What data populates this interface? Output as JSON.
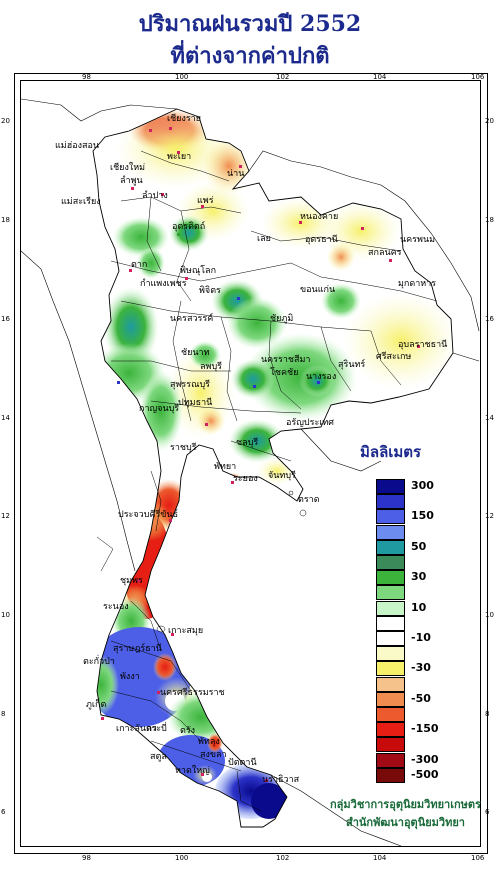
{
  "title_line1": "ปริมาณฝนรวมปี  2552",
  "title_line2": "ที่ต่างจากค่าปกติ",
  "lon_ticks": [
    "98",
    "100",
    "102",
    "104",
    "106"
  ],
  "lat_ticks": [
    "20",
    "18",
    "16",
    "14",
    "12",
    "10",
    "8",
    "6"
  ],
  "legend": {
    "title": "มิลลิเมตร",
    "levels": [
      {
        "label": "300",
        "color": "#0a0a8c"
      },
      {
        "label": "",
        "color": "#2c33c8"
      },
      {
        "label": "150",
        "color": "#4d5fe6"
      },
      {
        "label": "",
        "color": "#6c8cf0"
      },
      {
        "label": "50",
        "color": "#1e9aa0"
      },
      {
        "label": "",
        "color": "#3a8a5a"
      },
      {
        "label": "30",
        "color": "#3cb43c"
      },
      {
        "label": "",
        "color": "#7ed87e"
      },
      {
        "label": "10",
        "color": "#c8f5c8"
      },
      {
        "label": "",
        "color": "#ffffff"
      },
      {
        "label": "-10",
        "color": "#ffffff"
      },
      {
        "label": "",
        "color": "#fafac8"
      },
      {
        "label": "-30",
        "color": "#f7f06a"
      },
      {
        "label": "",
        "color": "#f5c28c"
      },
      {
        "label": "-50",
        "color": "#f08c50"
      },
      {
        "label": "",
        "color": "#ec5a2e"
      },
      {
        "label": "-150",
        "color": "#e61e14"
      },
      {
        "label": "",
        "color": "#c80a0a"
      },
      {
        "label": "-300",
        "color": "#a00a14"
      },
      {
        "label": "-500",
        "color": "#780a0a"
      }
    ]
  },
  "places": [
    {
      "name": "เชียงราย"
    },
    {
      "name": "แม่ฮ่องสอน"
    },
    {
      "name": "เชียงใหม่"
    },
    {
      "name": "ลำพูน"
    },
    {
      "name": "พะเยา"
    },
    {
      "name": "น่าน"
    },
    {
      "name": "ลำปาง"
    },
    {
      "name": "แพร่"
    },
    {
      "name": "แม่สะเรียง"
    },
    {
      "name": "อุตรดิตถ์"
    },
    {
      "name": "ตาก"
    },
    {
      "name": "พิษณุโลก"
    },
    {
      "name": "กำแพงเพชร"
    },
    {
      "name": "พิจิตร"
    },
    {
      "name": "นครสวรรค์"
    },
    {
      "name": "หนองคาย"
    },
    {
      "name": "อุดรธานี"
    },
    {
      "name": "นครพนม"
    },
    {
      "name": "สกลนคร"
    },
    {
      "name": "มุกดาหาร"
    },
    {
      "name": "เลย"
    },
    {
      "name": "ขอนแก่น"
    },
    {
      "name": "ชัยภูมิ"
    },
    {
      "name": "อุบลราชธานี"
    },
    {
      "name": "ศรีสะเกษ"
    },
    {
      "name": "สุรินทร์"
    },
    {
      "name": "ชัยนาท"
    },
    {
      "name": "ลพบุรี"
    },
    {
      "name": "สุพรรณบุรี"
    },
    {
      "name": "นครราชสีมา"
    },
    {
      "name": "โชคชัย"
    },
    {
      "name": "นางรอง"
    },
    {
      "name": "กาญจนบุรี"
    },
    {
      "name": "ปทุมธานี"
    },
    {
      "name": "ราชบุรี"
    },
    {
      "name": "อรัญประเทศ"
    },
    {
      "name": "ชลบุรี"
    },
    {
      "name": "พัทยา"
    },
    {
      "name": "ระยอง"
    },
    {
      "name": "จันทบุรี"
    },
    {
      "name": "ตราด"
    },
    {
      "name": "ประจวบคีรีขันธ์"
    },
    {
      "name": "ชุมพร"
    },
    {
      "name": "ระนอง"
    },
    {
      "name": "เกาะสมุย"
    },
    {
      "name": "สุราษฎร์ธานี"
    },
    {
      "name": "ตะกั่วป่า"
    },
    {
      "name": "พังงา"
    },
    {
      "name": "ภูเก็ต"
    },
    {
      "name": "กระบี่"
    },
    {
      "name": "นครศรีธรรมราช"
    },
    {
      "name": "ตรัง"
    },
    {
      "name": "เกาะลันตา"
    },
    {
      "name": "พัทลุง"
    },
    {
      "name": "สงขลา"
    },
    {
      "name": "หาดใหญ่"
    },
    {
      "name": "ปัตตานี"
    },
    {
      "name": "นราธิวาส"
    },
    {
      "name": "สตูล"
    }
  ],
  "credit_line1": "กลุ่มวิชาการอุตุนิยมวิทยาเกษตร",
  "credit_line2": "สำนักพัฒนาอุตุนิยมวิทยา"
}
